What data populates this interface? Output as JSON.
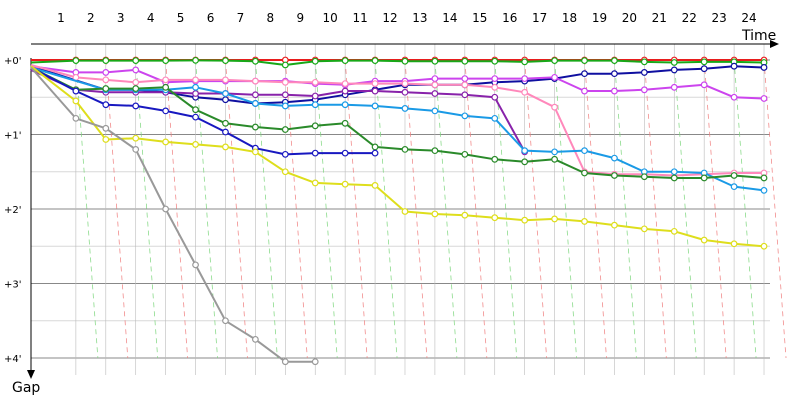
{
  "chart_data": {
    "type": "line",
    "xlabel": "Time",
    "ylabel": "Gap",
    "x_ticks": [
      "1",
      "2",
      "3",
      "4",
      "5",
      "6",
      "7",
      "8",
      "9",
      "10",
      "11",
      "12",
      "13",
      "14",
      "15",
      "16",
      "17",
      "18",
      "19",
      "20",
      "21",
      "22",
      "23",
      "24"
    ],
    "y_ticks": [
      {
        "label": "+0'",
        "value": 0
      },
      {
        "label": "+1'",
        "value": 60
      },
      {
        "label": "+2'",
        "value": 120
      },
      {
        "label": "+3'",
        "value": 180
      },
      {
        "label": "+4'",
        "value": 240
      }
    ],
    "xlim": [
      0,
      24.7
    ],
    "ylim": [
      -5,
      260
    ],
    "grid": true,
    "colors": {
      "major_grid": "#888888",
      "minor_grid": "#d8d8d8",
      "vertical_grid": "#bbbbbb",
      "green_dash": "#7fd77f",
      "red_dash": "#f08080"
    },
    "series": [
      {
        "color": "#e81c1c",
        "x": [
          0,
          1.5,
          2.5,
          3.5,
          4.5,
          5.5,
          6.5,
          7.5,
          8.5,
          9.5,
          10.5,
          11.5,
          12.5,
          13.5,
          14.5,
          15.5,
          16.5,
          17.5,
          18.5,
          19.5,
          20.5,
          21.5,
          22.5,
          23.5,
          24.5
        ],
        "values": [
          0,
          0,
          0,
          0,
          0,
          0,
          0,
          0,
          0,
          0,
          0,
          0,
          0,
          0,
          0,
          0,
          0,
          0,
          0,
          0,
          0,
          0,
          0,
          0,
          0
        ]
      },
      {
        "color": "#18a818",
        "x": [
          0,
          1.5,
          2.5,
          3.5,
          4.5,
          5.5,
          6.5,
          7.5,
          8.5,
          9.5,
          10.5,
          11.5,
          12.5,
          13.5,
          14.5,
          15.5,
          16.5,
          17.5,
          18.5,
          19.5,
          20.5,
          21.5,
          22.5,
          23.5,
          24.5
        ],
        "values": [
          2,
          0.5,
          0.5,
          0.5,
          0.5,
          0.3,
          0.5,
          1,
          4,
          1,
          0.5,
          0.5,
          1,
          1,
          1,
          1,
          1.5,
          0.5,
          0.5,
          0.5,
          1.5,
          2,
          1.5,
          1.5,
          2
        ]
      },
      {
        "color": "#0f0fa0",
        "x": [
          0,
          2.5,
          3.5,
          4.5,
          5.5,
          6.5,
          7.5,
          8.5,
          9.5,
          10.5,
          11.5,
          12.5,
          13.5,
          14.5,
          15.5,
          16.5,
          17.5,
          18.5,
          19.5,
          20.5,
          21.5,
          22.5,
          23.5,
          24.5
        ],
        "values": [
          5,
          24,
          24,
          26,
          30,
          32,
          35,
          34,
          32,
          28,
          24,
          20,
          20,
          20,
          18,
          17,
          15,
          11,
          11,
          10,
          8,
          7,
          5,
          6
        ]
      },
      {
        "color": "#cc44ee",
        "x": [
          0,
          1.5,
          2.5,
          3.5,
          4.5,
          5.5,
          6.5,
          7.5,
          8.5,
          9.5,
          10.5,
          11.5,
          12.5,
          13.5,
          14.5,
          15.5,
          16.5,
          17.5,
          18.5,
          19.5,
          20.5,
          21.5,
          22.5,
          23.5,
          24.5
        ],
        "values": [
          5,
          10,
          10,
          8,
          18,
          17,
          17,
          17,
          17,
          19,
          20,
          17,
          17,
          15,
          15,
          15,
          15,
          14,
          25,
          25,
          24,
          22,
          20,
          30,
          31
        ]
      },
      {
        "color": "#8822aa",
        "x": [
          0,
          1.5,
          2.5,
          3.5,
          4.5,
          5.5,
          6.5,
          7.5,
          8.5,
          9.5,
          10.5,
          11.5,
          12.5,
          13.5,
          14.5,
          15.5,
          16.5
        ],
        "values": [
          8,
          24,
          26,
          26,
          26,
          27,
          27,
          28,
          28,
          29,
          25,
          25,
          26,
          27,
          28,
          30,
          74
        ]
      },
      {
        "color": "#ff88bb",
        "x": [
          0,
          1.5,
          2.5,
          3.5,
          4.5,
          5.5,
          6.5,
          7.5,
          8.5,
          9.5,
          10.5,
          11.5,
          12.5,
          13.5,
          14.5,
          15.5,
          16.5,
          17.5,
          18.5,
          19.5,
          20.5,
          21.5,
          22.5,
          23.5,
          24.5
        ],
        "values": [
          4,
          14,
          16,
          18,
          16,
          16,
          16,
          17,
          18,
          18,
          19,
          19,
          19,
          20,
          20,
          22,
          26,
          38,
          90,
          92,
          92,
          93,
          92,
          91,
          91
        ]
      },
      {
        "color": "#1a9ae6",
        "x": [
          0,
          2.5,
          3.5,
          4.5,
          5.5,
          6.5,
          7.5,
          8.5,
          9.5,
          10.5,
          11.5,
          12.5,
          13.5,
          14.5,
          15.5,
          16.5,
          17.5,
          18.5,
          19.5,
          20.5,
          21.5,
          22.5,
          23.5,
          24.5
        ],
        "values": [
          6,
          24,
          24,
          24,
          22,
          27,
          35,
          37,
          36,
          36,
          37,
          39,
          41,
          45,
          47,
          73,
          74,
          73,
          79,
          90,
          90,
          91,
          102,
          105
        ]
      },
      {
        "color": "#2a8a2a",
        "x": [
          0,
          1.5,
          2.5,
          3.5,
          4.5,
          5.5,
          6.5,
          7.5,
          8.5,
          9.5,
          10.5,
          11.5,
          12.5,
          13.5,
          14.5,
          15.5,
          16.5,
          17.5,
          18.5,
          19.5,
          20.5,
          21.5,
          22.5,
          23.5,
          24.5
        ],
        "values": [
          6,
          24,
          23,
          23,
          22,
          40,
          51,
          54,
          56,
          53,
          51,
          70,
          72,
          73,
          76,
          80,
          82,
          80,
          91,
          93,
          94,
          95,
          95,
          93,
          95
        ]
      },
      {
        "color": "#1818c0",
        "x": [
          0,
          1.5,
          2.5,
          3.5,
          4.5,
          5.5,
          6.5,
          7.5,
          8.5,
          9.5,
          10.5,
          11.5
        ],
        "values": [
          6,
          25,
          36,
          37,
          41,
          46,
          58,
          71,
          76,
          75,
          75,
          75
        ]
      },
      {
        "color": "#dede1c",
        "x": [
          0,
          1.5,
          2.5,
          3.5,
          4.5,
          5.5,
          6.5,
          7.5,
          8.5,
          9.5,
          10.5,
          11.5,
          12.5,
          13.5,
          14.5,
          15.5,
          16.5,
          17.5,
          18.5,
          19.5,
          20.5,
          21.5,
          22.5,
          23.5,
          24.5
        ],
        "values": [
          5,
          33,
          64,
          63,
          66,
          68,
          70,
          74,
          90,
          99,
          100,
          101,
          122,
          124,
          125,
          127,
          129,
          128,
          130,
          133,
          136,
          138,
          145,
          148,
          150
        ]
      },
      {
        "color": "#999999",
        "x": [
          0,
          1.5,
          2.5,
          3.5,
          4.5,
          5.5,
          6.5,
          7.5,
          8.5,
          9.5
        ],
        "values": [
          6,
          47,
          55,
          72,
          120,
          165,
          210,
          225,
          243,
          243
        ]
      }
    ]
  }
}
